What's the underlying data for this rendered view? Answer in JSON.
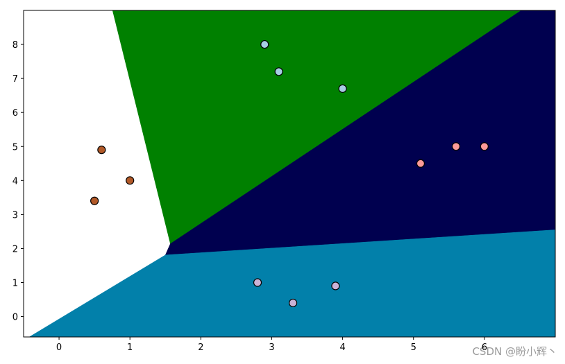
{
  "chart_data": {
    "type": "scatter",
    "xlim": [
      -0.5,
      7.0
    ],
    "ylim": [
      -0.6,
      9.0
    ],
    "xticks": [
      0,
      1,
      2,
      3,
      4,
      5,
      6
    ],
    "yticks": [
      0,
      1,
      2,
      3,
      4,
      5,
      6,
      7,
      8
    ],
    "regions": [
      {
        "color": "#ffffff",
        "x": [
          -0.5,
          0.755,
          1.57,
          1.5,
          -0.42,
          -0.5
        ],
        "y": [
          9.0,
          9.0,
          2.14,
          1.81,
          -0.6,
          -0.6
        ]
      },
      {
        "color": "#008000",
        "x": [
          0.755,
          6.52,
          1.57
        ],
        "y": [
          9.0,
          9.0,
          2.14
        ]
      },
      {
        "color": "#00004f",
        "x": [
          6.52,
          7.0,
          7.0,
          1.5,
          1.57
        ],
        "y": [
          9.0,
          9.0,
          2.55,
          1.81,
          2.14
        ]
      },
      {
        "color": "#0280aa",
        "x": [
          1.5,
          7.0,
          7.0,
          -0.42
        ],
        "y": [
          1.81,
          2.55,
          -0.6,
          -0.6
        ]
      }
    ],
    "series": [
      {
        "color": "#b15928",
        "x": [
          0.5,
          0.6,
          1.0
        ],
        "y": [
          3.4,
          4.9,
          4.0
        ]
      },
      {
        "color": "#a6cee3",
        "x": [
          2.9,
          3.1,
          4.0
        ],
        "y": [
          8.0,
          7.2,
          6.7
        ]
      },
      {
        "color": "#fb9a99",
        "x": [
          5.1,
          5.6,
          6.0
        ],
        "y": [
          4.5,
          5.0,
          5.0
        ]
      },
      {
        "color": "#cab2d6",
        "x": [
          2.8,
          3.3,
          3.9
        ],
        "y": [
          1.0,
          0.4,
          0.9
        ]
      }
    ],
    "watermark": "CSDN @盼小辉丶"
  }
}
